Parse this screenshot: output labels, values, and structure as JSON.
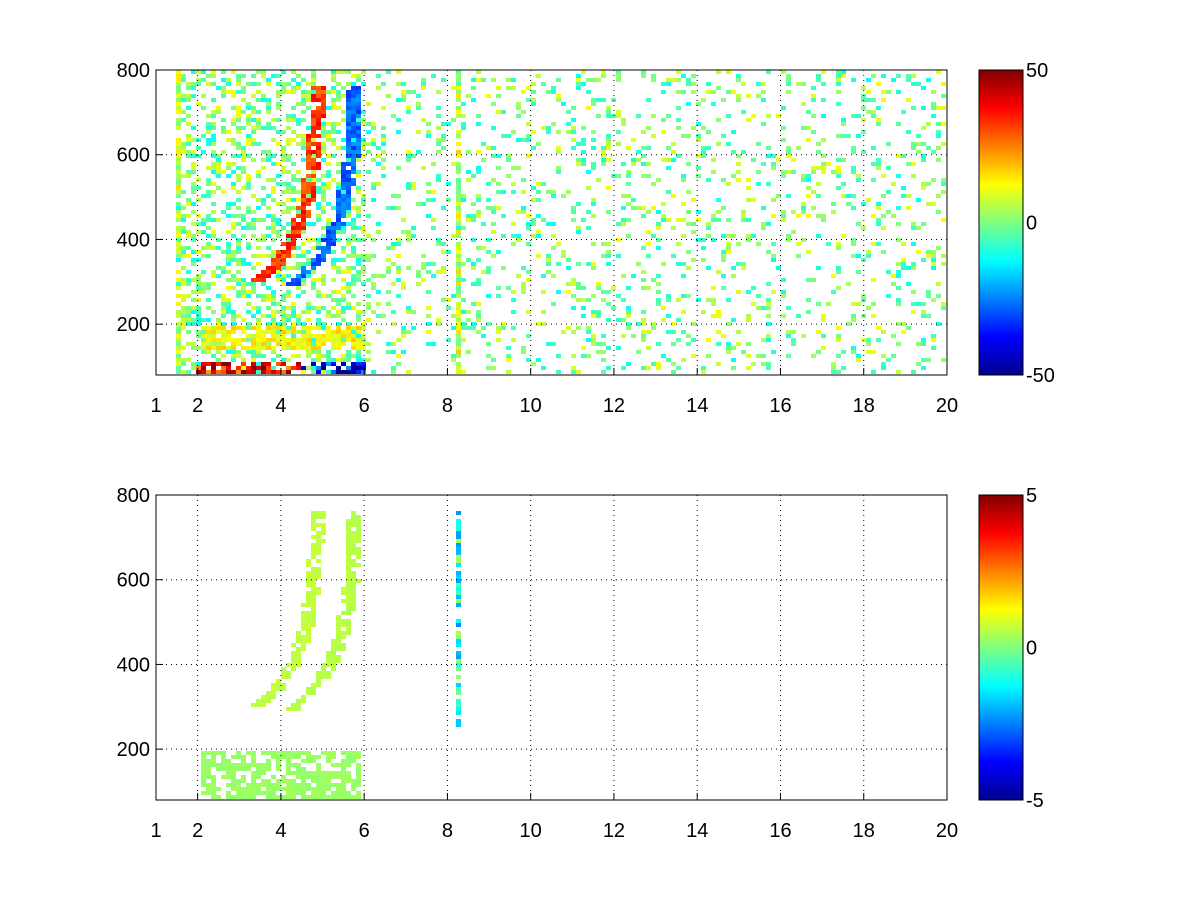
{
  "chart_data": [
    {
      "type": "heatmap",
      "title": "",
      "xlabel": "",
      "ylabel": "",
      "xlim": [
        1,
        20
      ],
      "ylim": [
        80,
        800
      ],
      "x_ticks": [
        1,
        2,
        4,
        6,
        8,
        10,
        12,
        14,
        16,
        18,
        20
      ],
      "y_ticks": [
        200,
        400,
        600,
        800
      ],
      "grid": true,
      "colormap": "jet",
      "colorbar": {
        "range": [
          -50,
          50
        ],
        "ticks": [
          -50,
          0,
          50
        ]
      },
      "features": [
        {
          "kind": "curve",
          "sign": "positive",
          "value": 35,
          "x": [
            3.4,
            3.9,
            4.3,
            4.6,
            4.8,
            4.9
          ],
          "y": [
            300,
            340,
            400,
            480,
            600,
            760
          ]
        },
        {
          "kind": "curve",
          "sign": "negative",
          "value": -30,
          "x": [
            4.2,
            4.8,
            5.2,
            5.5,
            5.7,
            5.8
          ],
          "y": [
            290,
            340,
            400,
            480,
            600,
            760
          ]
        },
        {
          "kind": "band",
          "x_range": [
            2.1,
            6.0
          ],
          "y_range": [
            140,
            200
          ],
          "value": 15
        },
        {
          "kind": "band",
          "x_range": [
            2.0,
            4.5
          ],
          "y_range": [
            80,
            110
          ],
          "value": 45
        },
        {
          "kind": "band",
          "x_range": [
            4.5,
            6.0
          ],
          "y_range": [
            80,
            110
          ],
          "value": -45
        },
        {
          "kind": "streak",
          "x": 1.6,
          "y_range": [
            80,
            800
          ],
          "value": 10
        },
        {
          "kind": "streak",
          "x": 8.25,
          "y_range": [
            80,
            800
          ],
          "value": 12
        }
      ],
      "background": {
        "x_range": [
          6,
          20
        ],
        "density": "sparse",
        "value_range": [
          -12,
          12
        ]
      }
    },
    {
      "type": "heatmap",
      "title": "",
      "xlabel": "",
      "ylabel": "",
      "xlim": [
        1,
        20
      ],
      "ylim": [
        80,
        800
      ],
      "x_ticks": [
        1,
        2,
        4,
        6,
        8,
        10,
        12,
        14,
        16,
        18,
        20
      ],
      "y_ticks": [
        200,
        400,
        600,
        800
      ],
      "grid": true,
      "colormap": "jet",
      "colorbar": {
        "range": [
          -5,
          5
        ],
        "ticks": [
          -5,
          0,
          5
        ]
      },
      "features": [
        {
          "kind": "curve",
          "sign": "positive",
          "value": 0.7,
          "x": [
            3.4,
            3.9,
            4.3,
            4.6,
            4.8,
            4.9
          ],
          "y": [
            300,
            340,
            400,
            480,
            600,
            760
          ]
        },
        {
          "kind": "curve",
          "sign": "positive",
          "value": 0.6,
          "x": [
            4.2,
            4.8,
            5.2,
            5.5,
            5.7,
            5.8
          ],
          "y": [
            290,
            340,
            400,
            480,
            600,
            760
          ]
        },
        {
          "kind": "band",
          "x_range": [
            2.1,
            5.9
          ],
          "y_range": [
            80,
            200
          ],
          "value": 0.3
        },
        {
          "kind": "streak",
          "x": 8.25,
          "y_range": [
            230,
            760
          ],
          "value": -1.5
        }
      ],
      "background": {
        "x_range": [
          6,
          20
        ],
        "density": "none",
        "value_range": [
          0,
          0
        ]
      }
    }
  ]
}
